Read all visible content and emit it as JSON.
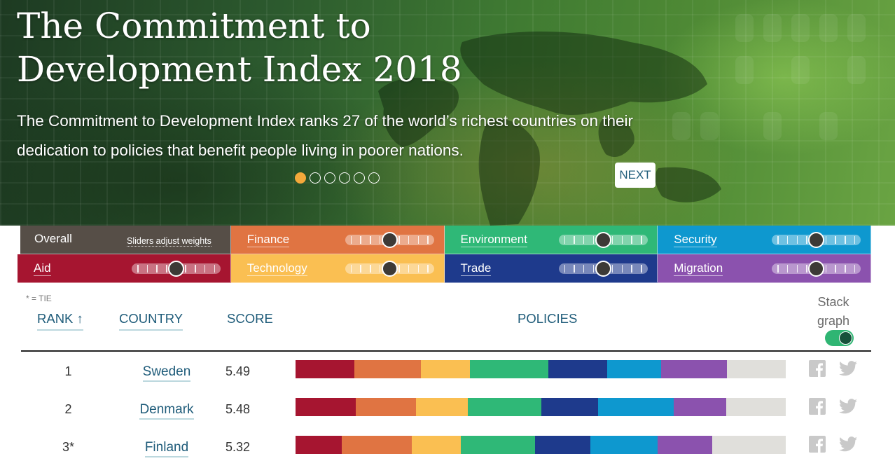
{
  "hero": {
    "title": "The Commitment to Development Index 2018",
    "subtitle": "The Commitment to Development Index ranks 27 of the world’s richest countries on their dedication to policies that benefit people living in poorer nations.",
    "next_label": "NEXT",
    "slide_count": 6,
    "active_slide": 1
  },
  "weights": {
    "overall_label": "Overall",
    "overall_hint": "Sliders adjust weights",
    "components": [
      {
        "label": "Finance",
        "color": "#e07442"
      },
      {
        "label": "Environment",
        "color": "#2fb877"
      },
      {
        "label": "Security",
        "color": "#0e98cf"
      },
      {
        "label": "Aid",
        "color": "#a61530"
      },
      {
        "label": "Technology",
        "color": "#fabf52"
      },
      {
        "label": "Trade",
        "color": "#1e3a8c"
      },
      {
        "label": "Migration",
        "color": "#8b52ae"
      }
    ],
    "overall_color": "#564e47"
  },
  "table": {
    "tie_note": "* = TIE",
    "headers": {
      "rank": "RANK ↑",
      "country": "COUNTRY",
      "score": "SCORE",
      "policies": "POLICIES",
      "stack_graph": "Stack graph"
    },
    "stack_graph_on": true,
    "rows": [
      {
        "rank": "1",
        "country": "Sweden",
        "score": "5.49",
        "policies": [
          12,
          13.5,
          10,
          16,
          12,
          11,
          13.5,
          12
        ]
      },
      {
        "rank": "2",
        "country": "Denmark",
        "score": "5.48",
        "policies": [
          12.3,
          12.3,
          10.6,
          15,
          11.5,
          15.5,
          10.6,
          12.2
        ]
      },
      {
        "rank": "3*",
        "country": "Finland",
        "score": "5.32",
        "policies": [
          9.4,
          14.3,
          10,
          15.1,
          11.4,
          13.7,
          11.1,
          15
        ]
      }
    ],
    "policy_colors": [
      "#a61530",
      "#e07442",
      "#fabf52",
      "#2fb877",
      "#1e3a8c",
      "#0e98cf",
      "#8b52ae",
      "#e0dfdb"
    ]
  }
}
